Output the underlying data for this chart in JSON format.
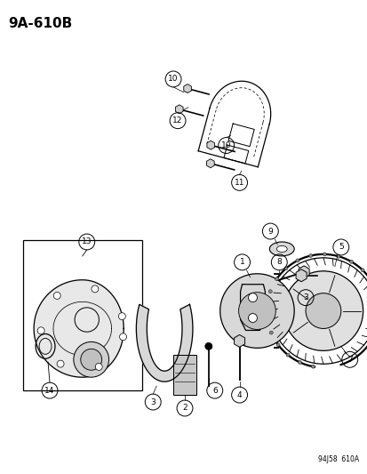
{
  "title": "9A-610B",
  "watermark": "94J58  610A",
  "bg_color": "#ffffff",
  "fg_color": "#000000",
  "fig_width": 4.14,
  "fig_height": 5.33,
  "dpi": 100
}
